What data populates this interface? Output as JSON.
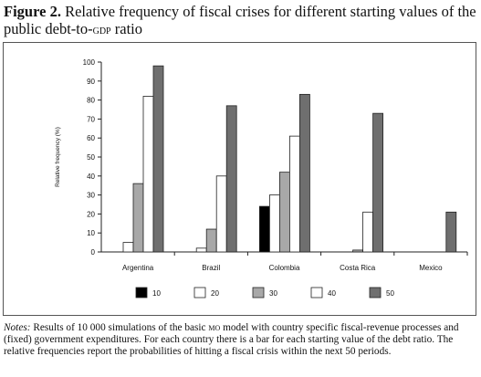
{
  "figure": {
    "label": "Figure 2.",
    "title_main": "Relative frequency of fiscal crises for different starting values of the public debt-to-",
    "title_gdp": "gdp",
    "title_end": " ratio"
  },
  "notes": {
    "label": "Notes:",
    "text_a": "Results of 10 000 simulations of the basic",
    "model": "mo",
    "text_b": "model with country specific fiscal-revenue processes and (fixed) government expenditures. For each country there is a bar for each starting value of the debt ratio. The relative frequencies report the probabilities of hitting a fiscal crisis within the next 50 periods."
  },
  "chart_data": {
    "type": "bar",
    "title": "",
    "ylabel": "Relative frequency (%)",
    "xlabel": "",
    "ylim": [
      0,
      100
    ],
    "yticks": [
      "0",
      "10",
      "20",
      "30",
      "40",
      "50",
      "60",
      "70",
      "80",
      "90",
      "100"
    ],
    "categories": [
      "Argentina",
      "Brazil",
      "Colombia",
      "Costa Rica",
      "Mexico"
    ],
    "legend_position": "bottom",
    "grid": false,
    "series": [
      {
        "name": "10",
        "color": "#000000",
        "values": [
          0,
          0,
          24,
          0,
          0
        ]
      },
      {
        "name": "20",
        "color": "#ffffff",
        "values": [
          5,
          2,
          30,
          0,
          0
        ]
      },
      {
        "name": "30",
        "color": "#a8a8a8",
        "values": [
          36,
          12,
          42,
          1,
          0
        ]
      },
      {
        "name": "40",
        "color": "#ffffff",
        "values": [
          82,
          40,
          61,
          21,
          0
        ]
      },
      {
        "name": "50",
        "color": "#6f6f6f",
        "values": [
          98,
          77,
          83,
          73,
          21
        ]
      }
    ]
  }
}
